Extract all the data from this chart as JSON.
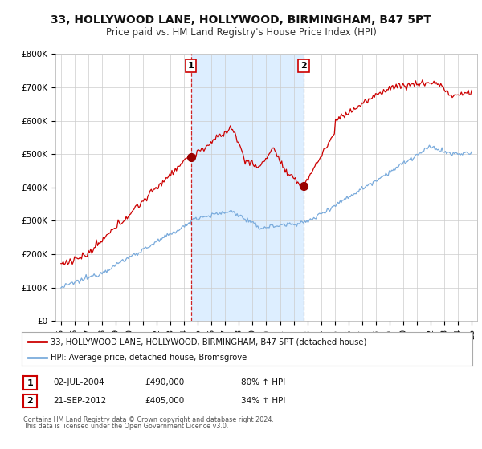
{
  "title": "33, HOLLYWOOD LANE, HOLLYWOOD, BIRMINGHAM, B47 5PT",
  "subtitle": "Price paid vs. HM Land Registry's House Price Index (HPI)",
  "ylim": [
    0,
    800000
  ],
  "yticks": [
    0,
    100000,
    200000,
    300000,
    400000,
    500000,
    600000,
    700000,
    800000
  ],
  "ytick_labels": [
    "£0",
    "£100K",
    "£200K",
    "£300K",
    "£400K",
    "£500K",
    "£600K",
    "£700K",
    "£800K"
  ],
  "sale1_year": 2004.5,
  "sale1_price": 490000,
  "sale1_label": "02-JUL-2004",
  "sale1_value_label": "£490,000",
  "sale1_hpi_label": "80% ↑ HPI",
  "sale2_year": 2012.72,
  "sale2_price": 405000,
  "sale2_label": "21-SEP-2012",
  "sale2_value_label": "£405,000",
  "sale2_hpi_label": "34% ↑ HPI",
  "line1_color": "#cc0000",
  "line2_color": "#7aabdc",
  "shade_color": "#ddeeff",
  "vline1_color": "#cc0000",
  "vline2_color": "#aaaaaa",
  "marker_color": "#990000",
  "box_edge_color": "#cc0000",
  "legend1_label": "33, HOLLYWOOD LANE, HOLLYWOOD, BIRMINGHAM, B47 5PT (detached house)",
  "legend2_label": "HPI: Average price, detached house, Bromsgrove",
  "footer1": "Contains HM Land Registry data © Crown copyright and database right 2024.",
  "footer2": "This data is licensed under the Open Government Licence v3.0.",
  "background_color": "#ffffff",
  "grid_color": "#cccccc",
  "title_fontsize": 10,
  "subtitle_fontsize": 8.5,
  "axis_fontsize": 7.5
}
